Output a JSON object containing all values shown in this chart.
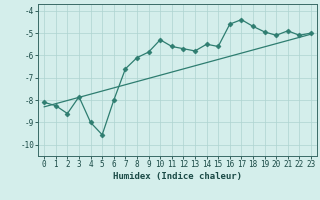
{
  "xlabel": "Humidex (Indice chaleur)",
  "xlim": [
    -0.5,
    23.5
  ],
  "ylim": [
    -10.5,
    -3.7
  ],
  "yticks": [
    -10,
    -9,
    -8,
    -7,
    -6,
    -5,
    -4
  ],
  "xticks": [
    0,
    1,
    2,
    3,
    4,
    5,
    6,
    7,
    8,
    9,
    10,
    11,
    12,
    13,
    14,
    15,
    16,
    17,
    18,
    19,
    20,
    21,
    22,
    23
  ],
  "curve_x": [
    0,
    1,
    2,
    3,
    4,
    5,
    6,
    7,
    8,
    9,
    10,
    11,
    12,
    13,
    14,
    15,
    16,
    17,
    18,
    19,
    20,
    21,
    22,
    23
  ],
  "curve_y": [
    -8.1,
    -8.25,
    -8.6,
    -7.85,
    -9.0,
    -9.55,
    -8.0,
    -6.6,
    -6.1,
    -5.85,
    -5.3,
    -5.6,
    -5.7,
    -5.8,
    -5.5,
    -5.6,
    -4.6,
    -4.4,
    -4.7,
    -4.95,
    -5.1,
    -4.9,
    -5.1,
    -5.0
  ],
  "trend_x": [
    0,
    23
  ],
  "trend_y": [
    -8.3,
    -5.05
  ],
  "line_color": "#2e7d70",
  "bg_color": "#d4eeeb",
  "grid_color": "#aed4d0"
}
